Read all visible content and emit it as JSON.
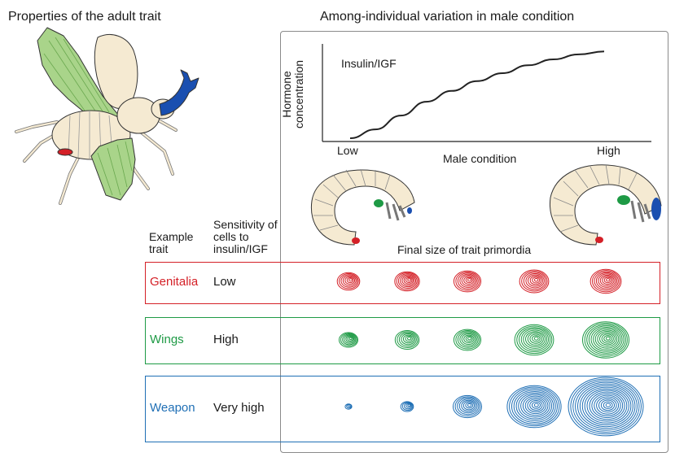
{
  "titles": {
    "left": "Properties of the adult trait",
    "right": "Among-individual variation in male condition"
  },
  "chart_data": {
    "type": "line",
    "series": [
      {
        "name": "Insulin/IGF",
        "x": [
          0,
          0.1,
          0.2,
          0.3,
          0.4,
          0.5,
          0.6,
          0.7,
          0.8,
          0.9,
          1.0
        ],
        "y": [
          0.0,
          0.09,
          0.23,
          0.37,
          0.48,
          0.58,
          0.66,
          0.74,
          0.8,
          0.85,
          0.88
        ]
      }
    ],
    "xlabel": "Male condition",
    "ylabel": "Hormone concentration",
    "x_tick_labels": [
      "Low",
      "High"
    ],
    "xlim": [
      0,
      1
    ],
    "ylim": [
      0,
      1
    ],
    "grid": false
  },
  "table": {
    "headers": {
      "example_trait": "Example trait",
      "sensitivity": "Sensitivity of cells to insulin/IGF",
      "primordia": "Final size of trait primordia"
    },
    "rows": [
      {
        "trait": "Genitalia",
        "sensitivity": "Low",
        "color": "#d42027",
        "sizes": [
          0.3,
          0.33,
          0.36,
          0.39,
          0.41
        ]
      },
      {
        "trait": "Wings",
        "sensitivity": "High",
        "color": "#1e9a45",
        "sizes": [
          0.25,
          0.32,
          0.36,
          0.52,
          0.62
        ]
      },
      {
        "trait": "Weapon",
        "sensitivity": "Very high",
        "color": "#1f6fb5",
        "sizes": [
          0.09,
          0.17,
          0.38,
          0.72,
          1.0
        ]
      }
    ]
  }
}
